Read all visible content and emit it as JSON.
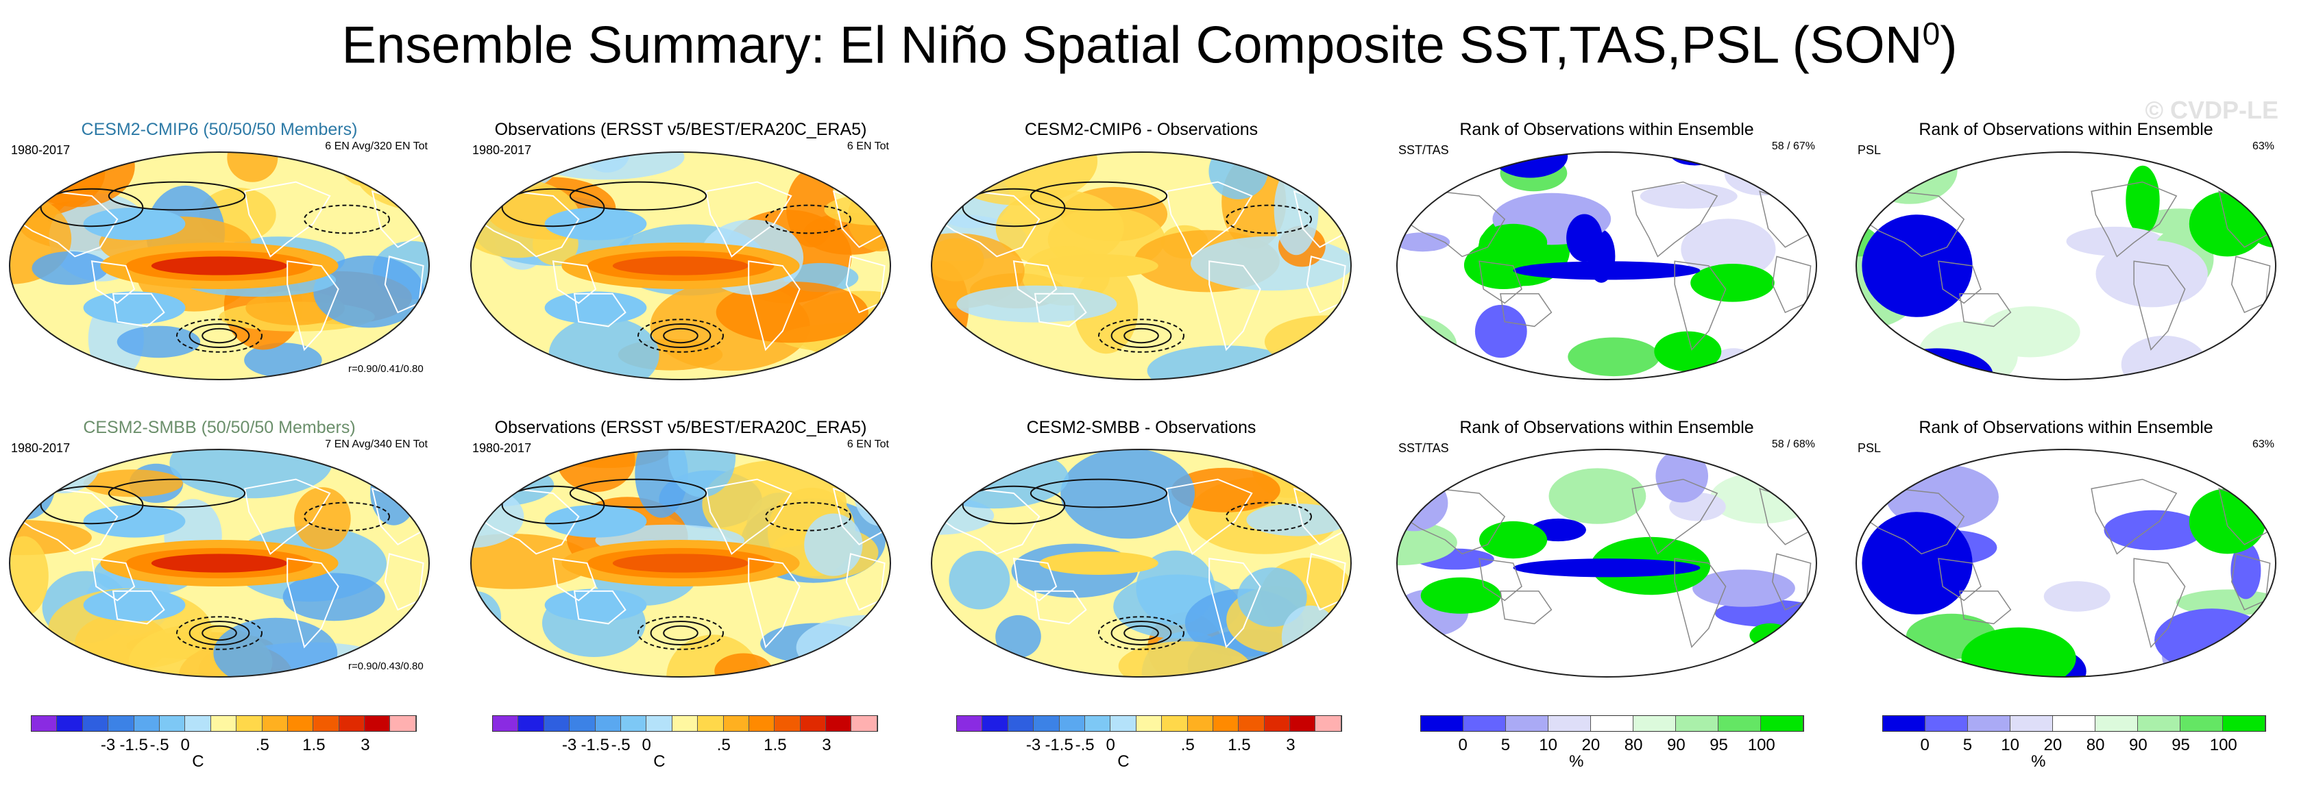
{
  "title_main": "Ensemble Summary: El Niño Spatial Composite SST,TAS,PSL (SON",
  "title_sup": "0",
  "title_close": ")",
  "watermark": "© CVDP-LE",
  "colors": {
    "title_cmip6": "#2d7aa6",
    "title_smbb": "#6b8f6b"
  },
  "rows": [
    {
      "panels": [
        {
          "title": "CESM2-CMIP6 (50/50/50 Members)",
          "left": "1980-2017",
          "right": "6 EN Avg/320 EN Tot",
          "corr": "r=0.90/0.41/0.80",
          "kind": "composite",
          "color_key": "title_cmip6"
        },
        {
          "title": "Observations (ERSST v5/BEST/ERA20C_ERA5)",
          "left": "1980-2017",
          "right": "6 EN Tot",
          "corr": "",
          "kind": "obs"
        },
        {
          "title": "CESM2-CMIP6 - Observations",
          "left": "",
          "right": "",
          "corr": "",
          "kind": "diff"
        },
        {
          "title": "Rank of Observations within Ensemble",
          "left": "SST/TAS",
          "right": "58 /  67%",
          "corr": "",
          "kind": "rank_sst"
        },
        {
          "title": "Rank of Observations within Ensemble",
          "left": "PSL",
          "right": "63%",
          "corr": "",
          "kind": "rank_psl"
        }
      ]
    },
    {
      "panels": [
        {
          "title": "CESM2-SMBB (50/50/50 Members)",
          "left": "1980-2017",
          "right": "7 EN Avg/340 EN Tot",
          "corr": "r=0.90/0.43/0.80",
          "kind": "composite",
          "color_key": "title_smbb"
        },
        {
          "title": "Observations (ERSST v5/BEST/ERA20C_ERA5)",
          "left": "1980-2017",
          "right": "6 EN Tot",
          "corr": "",
          "kind": "obs"
        },
        {
          "title": "CESM2-SMBB - Observations",
          "left": "",
          "right": "",
          "corr": "",
          "kind": "diff"
        },
        {
          "title": "Rank of Observations within Ensemble",
          "left": "SST/TAS",
          "right": "58 /  68%",
          "corr": "",
          "kind": "rank_sst"
        },
        {
          "title": "Rank of Observations within Ensemble",
          "left": "PSL",
          "right": "63%",
          "corr": "",
          "kind": "rank_psl"
        }
      ]
    }
  ],
  "chart_data": [
    {
      "type": "heatmap",
      "title": "El Niño composite colorbar",
      "units": "C",
      "tick_labels": [
        "-3",
        "-1.5",
        "-.5",
        "0",
        ".5",
        "1.5",
        "3"
      ],
      "colors": [
        "#8a2be2",
        "#1e1ee6",
        "#2e5fe0",
        "#3c82e6",
        "#5aa8f0",
        "#7dc8f5",
        "#b4e2fa",
        "#fff7a0",
        "#ffd84a",
        "#ffb020",
        "#ff8a00",
        "#f25c00",
        "#e02a00",
        "#c80000",
        "#ffb0b0"
      ]
    },
    {
      "type": "heatmap",
      "title": "Rank colorbar",
      "units": "%",
      "tick_labels": [
        "0",
        "5",
        "10",
        "20",
        "80",
        "90",
        "95",
        "100"
      ],
      "colors": [
        "#0000e6",
        "#6464ff",
        "#aaaaf5",
        "#dedef8",
        "#ffffff",
        "#dcfadc",
        "#aaf0aa",
        "#64e664",
        "#00e600"
      ]
    }
  ]
}
